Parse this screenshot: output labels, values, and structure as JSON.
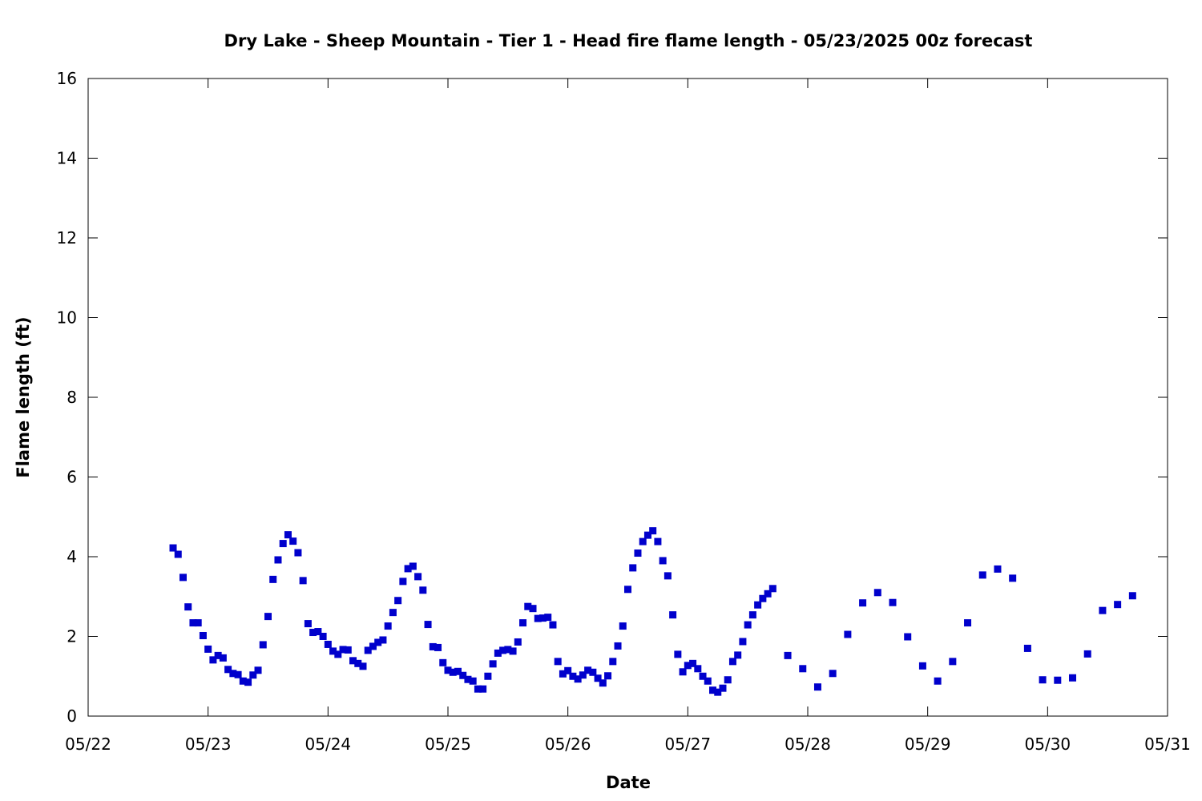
{
  "chart_data": {
    "type": "scatter",
    "title": "Dry Lake - Sheep Mountain - Tier 1 - Head fire flame length - 05/23/2025 00z forecast",
    "xlabel": "Date",
    "ylabel": "Flame length (ft)",
    "x_ticks": [
      "05/22",
      "05/23",
      "05/24",
      "05/25",
      "05/26",
      "05/27",
      "05/28",
      "05/29",
      "05/30",
      "05/31"
    ],
    "y_ticks": [
      "0",
      "2",
      "4",
      "6",
      "8",
      "10",
      "12",
      "14",
      "16"
    ],
    "xlim": [
      "2025-05-22 00:00",
      "2025-05-31 00:00"
    ],
    "ylim": [
      0,
      16
    ],
    "grid": false,
    "legend": "none",
    "marker": "square",
    "color": "#0000cc",
    "series": [
      {
        "x": [
          "2025-05-22 17:00",
          "2025-05-22 18:00",
          "2025-05-22 19:00",
          "2025-05-22 20:00",
          "2025-05-22 21:00",
          "2025-05-22 22:00",
          "2025-05-22 23:00",
          "2025-05-23 00:00",
          "2025-05-23 01:00",
          "2025-05-23 02:00",
          "2025-05-23 03:00",
          "2025-05-23 04:00",
          "2025-05-23 05:00",
          "2025-05-23 06:00",
          "2025-05-23 07:00",
          "2025-05-23 08:00",
          "2025-05-23 09:00",
          "2025-05-23 10:00",
          "2025-05-23 11:00",
          "2025-05-23 12:00",
          "2025-05-23 13:00",
          "2025-05-23 14:00",
          "2025-05-23 15:00",
          "2025-05-23 16:00",
          "2025-05-23 17:00",
          "2025-05-23 18:00",
          "2025-05-23 19:00",
          "2025-05-23 20:00",
          "2025-05-23 21:00",
          "2025-05-23 22:00",
          "2025-05-23 23:00",
          "2025-05-24 00:00",
          "2025-05-24 01:00",
          "2025-05-24 02:00",
          "2025-05-24 03:00",
          "2025-05-24 04:00",
          "2025-05-24 05:00",
          "2025-05-24 06:00",
          "2025-05-24 07:00",
          "2025-05-24 08:00",
          "2025-05-24 09:00",
          "2025-05-24 10:00",
          "2025-05-24 11:00",
          "2025-05-24 12:00",
          "2025-05-24 13:00",
          "2025-05-24 14:00",
          "2025-05-24 15:00",
          "2025-05-24 16:00",
          "2025-05-24 17:00",
          "2025-05-24 18:00",
          "2025-05-24 19:00",
          "2025-05-24 20:00",
          "2025-05-24 21:00",
          "2025-05-24 22:00",
          "2025-05-24 23:00",
          "2025-05-25 00:00",
          "2025-05-25 01:00",
          "2025-05-25 02:00",
          "2025-05-25 03:00",
          "2025-05-25 04:00",
          "2025-05-25 05:00",
          "2025-05-25 06:00",
          "2025-05-25 07:00",
          "2025-05-25 08:00",
          "2025-05-25 09:00",
          "2025-05-25 10:00",
          "2025-05-25 11:00",
          "2025-05-25 12:00",
          "2025-05-25 13:00",
          "2025-05-25 14:00",
          "2025-05-25 15:00",
          "2025-05-25 16:00",
          "2025-05-25 17:00",
          "2025-05-25 18:00",
          "2025-05-25 19:00",
          "2025-05-25 20:00",
          "2025-05-25 21:00",
          "2025-05-25 22:00",
          "2025-05-25 23:00",
          "2025-05-26 00:00",
          "2025-05-26 01:00",
          "2025-05-26 02:00",
          "2025-05-26 03:00",
          "2025-05-26 04:00",
          "2025-05-26 05:00",
          "2025-05-26 06:00",
          "2025-05-26 07:00",
          "2025-05-26 08:00",
          "2025-05-26 09:00",
          "2025-05-26 10:00",
          "2025-05-26 11:00",
          "2025-05-26 12:00",
          "2025-05-26 13:00",
          "2025-05-26 14:00",
          "2025-05-26 15:00",
          "2025-05-26 16:00",
          "2025-05-26 17:00",
          "2025-05-26 18:00",
          "2025-05-26 19:00",
          "2025-05-26 20:00",
          "2025-05-26 21:00",
          "2025-05-26 22:00",
          "2025-05-26 23:00",
          "2025-05-27 00:00",
          "2025-05-27 01:00",
          "2025-05-27 02:00",
          "2025-05-27 03:00",
          "2025-05-27 04:00",
          "2025-05-27 05:00",
          "2025-05-27 06:00",
          "2025-05-27 07:00",
          "2025-05-27 08:00",
          "2025-05-27 09:00",
          "2025-05-27 10:00",
          "2025-05-27 11:00",
          "2025-05-27 12:00",
          "2025-05-27 13:00",
          "2025-05-27 14:00",
          "2025-05-27 15:00",
          "2025-05-27 16:00",
          "2025-05-27 17:00",
          "2025-05-27 20:00",
          "2025-05-27 23:00",
          "2025-05-28 02:00",
          "2025-05-28 05:00",
          "2025-05-28 08:00",
          "2025-05-28 11:00",
          "2025-05-28 14:00",
          "2025-05-28 17:00",
          "2025-05-28 20:00",
          "2025-05-28 23:00",
          "2025-05-29 02:00",
          "2025-05-29 05:00",
          "2025-05-29 08:00",
          "2025-05-29 11:00",
          "2025-05-29 14:00",
          "2025-05-29 17:00",
          "2025-05-29 20:00",
          "2025-05-29 23:00",
          "2025-05-30 02:00",
          "2025-05-30 05:00",
          "2025-05-30 08:00",
          "2025-05-30 11:00",
          "2025-05-30 14:00",
          "2025-05-30 17:00"
        ],
        "y": [
          4.22,
          4.06,
          3.48,
          2.74,
          2.34,
          2.34,
          2.02,
          1.68,
          1.41,
          1.52,
          1.46,
          1.17,
          1.07,
          1.04,
          0.88,
          0.85,
          1.03,
          1.15,
          1.79,
          2.5,
          3.43,
          3.92,
          4.33,
          4.55,
          4.39,
          4.1,
          3.4,
          2.32,
          2.1,
          2.12,
          2.0,
          1.8,
          1.63,
          1.55,
          1.67,
          1.66,
          1.39,
          1.32,
          1.25,
          1.65,
          1.75,
          1.85,
          1.91,
          2.26,
          2.6,
          2.9,
          3.38,
          3.7,
          3.76,
          3.5,
          3.16,
          2.3,
          1.74,
          1.72,
          1.34,
          1.15,
          1.1,
          1.12,
          1.02,
          0.92,
          0.88,
          0.68,
          0.68,
          1.0,
          1.31,
          1.58,
          1.65,
          1.67,
          1.63,
          1.86,
          2.34,
          2.75,
          2.7,
          2.45,
          2.46,
          2.48,
          2.29,
          1.37,
          1.06,
          1.14,
          1.0,
          0.93,
          1.03,
          1.15,
          1.1,
          0.95,
          0.83,
          1.01,
          1.37,
          1.76,
          2.26,
          3.18,
          3.72,
          4.09,
          4.38,
          4.54,
          4.65,
          4.38,
          3.9,
          3.52,
          2.54,
          1.55,
          1.11,
          1.27,
          1.32,
          1.19,
          1.0,
          0.88,
          0.65,
          0.6,
          0.7,
          0.91,
          1.37,
          1.53,
          1.87,
          2.29,
          2.54,
          2.79,
          2.95,
          3.07,
          3.2,
          1.52,
          1.19,
          0.73,
          1.07,
          2.05,
          2.84,
          3.1,
          2.85,
          1.99,
          1.26,
          0.88,
          1.37,
          2.34,
          3.54,
          3.69,
          3.46,
          1.7,
          0.91,
          0.9,
          0.96,
          1.56,
          2.65,
          2.8,
          3.02
        ]
      }
    ]
  }
}
